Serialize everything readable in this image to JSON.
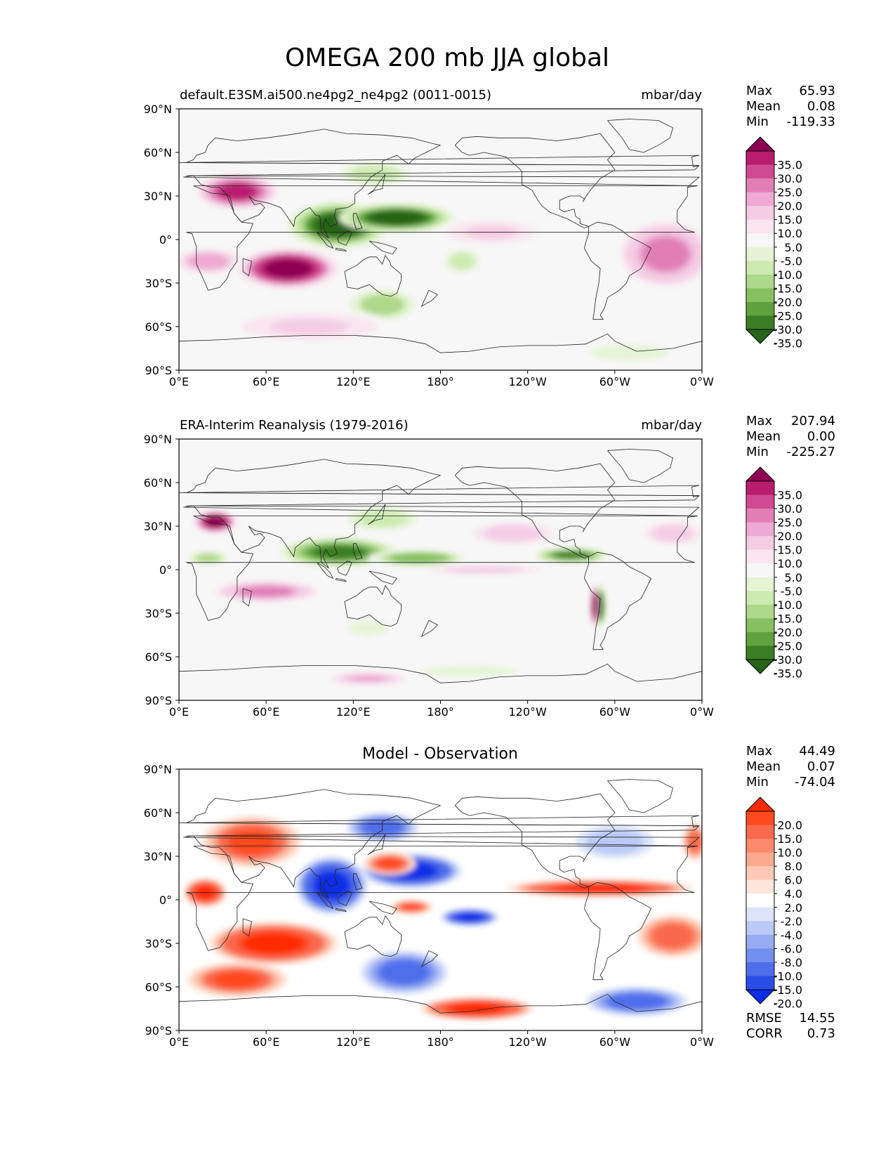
{
  "figure": {
    "title": "OMEGA 200 mb JJA global"
  },
  "chart_data": [
    {
      "type": "heatmap",
      "name": "test-panel",
      "left_title": "default.E3SM.ai500.ne4pg2_ne4pg2 (0011-0015)",
      "right_title": "mbar/day",
      "center_title": "",
      "xticks": [
        "0°E",
        "60°E",
        "120°E",
        "180°",
        "120°W",
        "60°W",
        "0°W"
      ],
      "yticks": [
        "90°N",
        "60°N",
        "30°N",
        "0°",
        "30°S",
        "60°S",
        "90°S"
      ],
      "xlim": [
        0,
        360
      ],
      "ylim": [
        -90,
        90
      ],
      "stats": [
        {
          "label": "Max",
          "value": "65.93"
        },
        {
          "label": "Mean",
          "value": "0.08"
        },
        {
          "label": "Min",
          "value": "-119.33"
        }
      ],
      "colorbar": {
        "levels": [
          "35.0",
          "30.0",
          "25.0",
          "20.0",
          "15.0",
          "10.0",
          "5.0",
          "-5.0",
          "-10.0",
          "-15.0",
          "-20.0",
          "-25.0",
          "-30.0",
          "-35.0"
        ],
        "colors": [
          "#8e0152",
          "#b91e6e",
          "#d04a91",
          "#e17fb5",
          "#eeaad2",
          "#f4cde4",
          "#f9e6f0",
          "#f7f7f7",
          "#e6f4d6",
          "#cdeab1",
          "#aed88a",
          "#86c061",
          "#5fa13c",
          "#3b7d24",
          "#276419"
        ]
      },
      "blobs": [
        {
          "lon": 40,
          "lat": 33,
          "rx": 28,
          "ry": 12,
          "value": 30
        },
        {
          "lon": 75,
          "lat": -20,
          "rx": 35,
          "ry": 14,
          "value": 40
        },
        {
          "lon": 20,
          "lat": -15,
          "rx": 25,
          "ry": 10,
          "value": 18
        },
        {
          "lon": 110,
          "lat": 10,
          "rx": 35,
          "ry": 16,
          "value": -40
        },
        {
          "lon": 150,
          "lat": 15,
          "rx": 40,
          "ry": 10,
          "value": -40
        },
        {
          "lon": 135,
          "lat": 45,
          "rx": 30,
          "ry": 10,
          "value": -15
        },
        {
          "lon": 140,
          "lat": -45,
          "rx": 25,
          "ry": 12,
          "value": -20
        },
        {
          "lon": 195,
          "lat": -15,
          "rx": 15,
          "ry": 10,
          "value": -15
        },
        {
          "lon": 335,
          "lat": -10,
          "rx": 35,
          "ry": 25,
          "value": 20
        },
        {
          "lon": 215,
          "lat": 5,
          "rx": 40,
          "ry": 10,
          "value": 10
        },
        {
          "lon": 90,
          "lat": -60,
          "rx": 60,
          "ry": 12,
          "value": 10
        },
        {
          "lon": 310,
          "lat": -78,
          "rx": 40,
          "ry": 8,
          "value": -8
        }
      ]
    },
    {
      "type": "heatmap",
      "name": "reference-panel",
      "left_title": "ERA-Interim Reanalysis (1979-2016)",
      "right_title": "mbar/day",
      "center_title": "",
      "xticks": [
        "0°E",
        "60°E",
        "120°E",
        "180°",
        "120°W",
        "60°W",
        "0°W"
      ],
      "yticks": [
        "90°N",
        "60°N",
        "30°N",
        "0°",
        "30°S",
        "60°S",
        "90°S"
      ],
      "xlim": [
        0,
        360
      ],
      "ylim": [
        -90,
        90
      ],
      "stats": [
        {
          "label": "Max",
          "value": "207.94"
        },
        {
          "label": "Mean",
          "value": "0.00"
        },
        {
          "label": "Min",
          "value": "-225.27"
        }
      ],
      "colorbar": {
        "levels": [
          "35.0",
          "30.0",
          "25.0",
          "20.0",
          "15.0",
          "10.0",
          "5.0",
          "-5.0",
          "-10.0",
          "-15.0",
          "-20.0",
          "-25.0",
          "-30.0",
          "-35.0"
        ],
        "colors": [
          "#8e0152",
          "#b91e6e",
          "#d04a91",
          "#e17fb5",
          "#eeaad2",
          "#f4cde4",
          "#f9e6f0",
          "#f7f7f7",
          "#e6f4d6",
          "#cdeab1",
          "#aed88a",
          "#86c061",
          "#5fa13c",
          "#3b7d24",
          "#276419"
        ]
      },
      "blobs": [
        {
          "lon": 25,
          "lat": 33,
          "rx": 15,
          "ry": 8,
          "value": 40
        },
        {
          "lon": 110,
          "lat": 12,
          "rx": 40,
          "ry": 10,
          "value": -35
        },
        {
          "lon": 165,
          "lat": 8,
          "rx": 35,
          "ry": 6,
          "value": -25
        },
        {
          "lon": 270,
          "lat": 10,
          "rx": 25,
          "ry": 5,
          "value": -35
        },
        {
          "lon": 20,
          "lat": 8,
          "rx": 15,
          "ry": 5,
          "value": -20
        },
        {
          "lon": 290,
          "lat": -25,
          "rx": 4,
          "ry": 15,
          "value": -40
        },
        {
          "lon": 286,
          "lat": -25,
          "rx": 3,
          "ry": 15,
          "value": 40
        },
        {
          "lon": 60,
          "lat": -15,
          "rx": 40,
          "ry": 8,
          "value": 20
        },
        {
          "lon": 210,
          "lat": 0,
          "rx": 50,
          "ry": 4,
          "value": 12
        },
        {
          "lon": 230,
          "lat": 25,
          "rx": 35,
          "ry": 10,
          "value": 12
        },
        {
          "lon": 340,
          "lat": 25,
          "rx": 25,
          "ry": 10,
          "value": 12
        },
        {
          "lon": 200,
          "lat": -70,
          "rx": 50,
          "ry": 5,
          "value": -10
        },
        {
          "lon": 130,
          "lat": -75,
          "rx": 30,
          "ry": 5,
          "value": 15
        },
        {
          "lon": 130,
          "lat": -40,
          "rx": 20,
          "ry": 8,
          "value": -10
        },
        {
          "lon": 140,
          "lat": 35,
          "rx": 30,
          "ry": 10,
          "value": -15
        }
      ]
    },
    {
      "type": "heatmap",
      "name": "difference-panel",
      "left_title": "",
      "right_title": "",
      "center_title": "Model - Observation",
      "xticks": [
        "0°E",
        "60°E",
        "120°E",
        "180°",
        "120°W",
        "60°W",
        "0°W"
      ],
      "yticks": [
        "90°N",
        "60°N",
        "30°N",
        "0°",
        "30°S",
        "60°S",
        "90°S"
      ],
      "xlim": [
        0,
        360
      ],
      "ylim": [
        -90,
        90
      ],
      "stats": [
        {
          "label": "Max",
          "value": "44.49"
        },
        {
          "label": "Mean",
          "value": "0.07"
        },
        {
          "label": "Min",
          "value": "-74.04"
        }
      ],
      "extra_stats": [
        {
          "label": "RMSE",
          "value": "14.55"
        },
        {
          "label": "CORR",
          "value": "0.73"
        }
      ],
      "colorbar": {
        "levels": [
          "20.0",
          "15.0",
          "10.0",
          "8.0",
          "6.0",
          "4.0",
          "2.0",
          "-2.0",
          "-4.0",
          "-6.0",
          "-8.0",
          "-10.0",
          "-15.0",
          "-20.0"
        ],
        "colors": [
          "#ff2a00",
          "#ff4a1f",
          "#f9694d",
          "#fb8a6b",
          "#fba98f",
          "#fccab6",
          "#fee6db",
          "#ffffff",
          "#dce4fa",
          "#bac9f6",
          "#96abf2",
          "#7390ee",
          "#4f6eeb",
          "#2b4ce6",
          "#0a2ee6"
        ]
      },
      "blobs": [
        {
          "lon": 50,
          "lat": 40,
          "rx": 35,
          "ry": 18,
          "value": 15
        },
        {
          "lon": 65,
          "lat": -30,
          "rx": 45,
          "ry": 15,
          "value": 22
        },
        {
          "lon": 40,
          "lat": -55,
          "rx": 35,
          "ry": 12,
          "value": 15
        },
        {
          "lon": 18,
          "lat": 5,
          "rx": 15,
          "ry": 10,
          "value": 20
        },
        {
          "lon": 105,
          "lat": 10,
          "rx": 25,
          "ry": 20,
          "value": -22
        },
        {
          "lon": 160,
          "lat": 20,
          "rx": 35,
          "ry": 12,
          "value": -22
        },
        {
          "lon": 140,
          "lat": 50,
          "rx": 25,
          "ry": 10,
          "value": -15
        },
        {
          "lon": 155,
          "lat": -50,
          "rx": 30,
          "ry": 15,
          "value": -15
        },
        {
          "lon": 205,
          "lat": -75,
          "rx": 40,
          "ry": 8,
          "value": 20
        },
        {
          "lon": 290,
          "lat": 8,
          "rx": 65,
          "ry": 6,
          "value": 22
        },
        {
          "lon": 200,
          "lat": -12,
          "rx": 20,
          "ry": 6,
          "value": -22
        },
        {
          "lon": 315,
          "lat": -70,
          "rx": 35,
          "ry": 10,
          "value": -15
        },
        {
          "lon": 340,
          "lat": -25,
          "rx": 25,
          "ry": 15,
          "value": 12
        },
        {
          "lon": 145,
          "lat": 25,
          "rx": 18,
          "ry": 8,
          "value": 15
        },
        {
          "lon": 160,
          "lat": -5,
          "rx": 15,
          "ry": 5,
          "value": 15
        },
        {
          "lon": 300,
          "lat": 40,
          "rx": 35,
          "ry": 15,
          "value": -6
        },
        {
          "lon": 355,
          "lat": 40,
          "rx": 10,
          "ry": 15,
          "value": 10
        }
      ]
    }
  ]
}
